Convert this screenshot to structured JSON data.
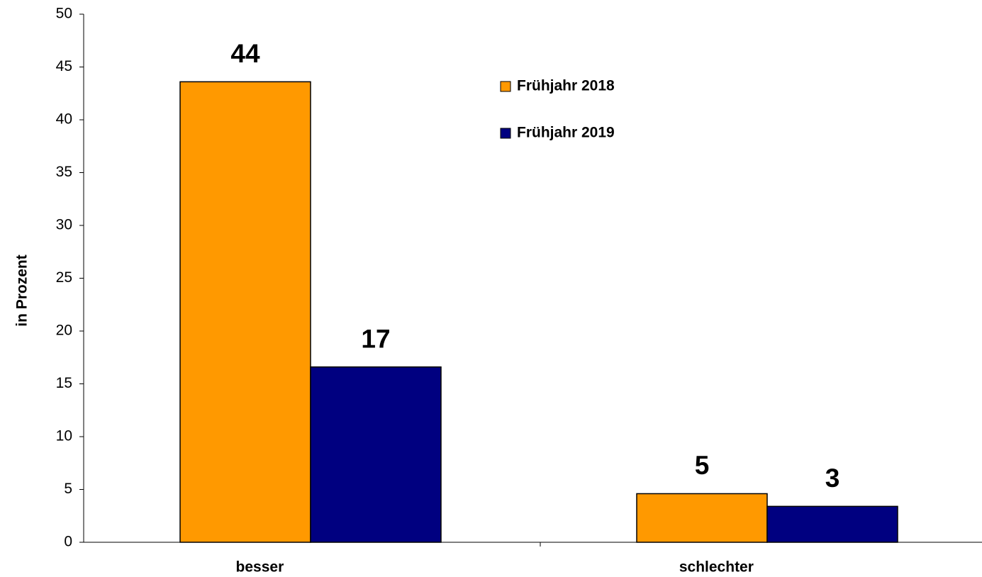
{
  "chart_data": {
    "type": "bar",
    "y_label": "in Prozent",
    "categories": [
      "besser",
      "schlechter"
    ],
    "series": [
      {
        "name": "Frühjahr 2018",
        "color": "#ff9900",
        "values": [
          43.6,
          4.6
        ],
        "value_labels": [
          "44",
          "5"
        ]
      },
      {
        "name": "Frühjahr 2019",
        "color": "#000080",
        "values": [
          16.6,
          3.4
        ],
        "value_labels": [
          "17",
          "3"
        ]
      }
    ],
    "ylim": [
      0,
      50
    ],
    "yticks": [
      0,
      5,
      10,
      15,
      20,
      25,
      30,
      35,
      40,
      45,
      50
    ]
  }
}
